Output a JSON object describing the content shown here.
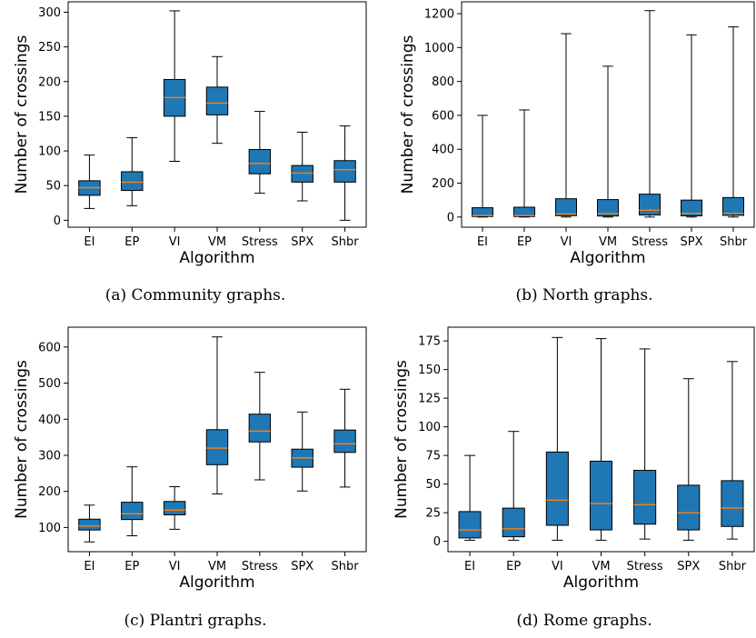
{
  "colors": {
    "box_fill": "#1f77b4",
    "median": "#ff7f0e",
    "line": "#000000"
  },
  "chart_data": [
    {
      "type": "box",
      "caption": "(a) Community graphs.",
      "xlabel": "Algorithm",
      "ylabel": "Number of crossings",
      "categories": [
        "EI",
        "EP",
        "VI",
        "VM",
        "Stress",
        "SPX",
        "Shbr"
      ],
      "ylim": [
        -10,
        315
      ],
      "yticks": [
        0,
        50,
        100,
        150,
        200,
        250,
        300
      ],
      "boxes": [
        {
          "min": 17,
          "q1": 36,
          "median": 47,
          "q3": 57,
          "max": 94
        },
        {
          "min": 21,
          "q1": 43,
          "median": 55,
          "q3": 70,
          "max": 119
        },
        {
          "min": 85,
          "q1": 150,
          "median": 177,
          "q3": 203,
          "max": 302
        },
        {
          "min": 111,
          "q1": 152,
          "median": 169,
          "q3": 192,
          "max": 236
        },
        {
          "min": 39,
          "q1": 67,
          "median": 82,
          "q3": 102,
          "max": 157
        },
        {
          "min": 28,
          "q1": 55,
          "median": 68,
          "q3": 79,
          "max": 127
        },
        {
          "min": 0,
          "q1": 55,
          "median": 73,
          "q3": 86,
          "max": 136
        }
      ]
    },
    {
      "type": "box",
      "caption": "(b) North graphs.",
      "xlabel": "Algorithm",
      "ylabel": "Number of crossings",
      "categories": [
        "EI",
        "EP",
        "VI",
        "VM",
        "Stress",
        "SPX",
        "Shbr"
      ],
      "ylim": [
        -60,
        1270
      ],
      "yticks": [
        0,
        200,
        400,
        600,
        800,
        1000,
        1200
      ],
      "boxes": [
        {
          "min": 0,
          "q1": 3,
          "median": 8,
          "q3": 55,
          "max": 600
        },
        {
          "min": 0,
          "q1": 3,
          "median": 8,
          "q3": 58,
          "max": 632
        },
        {
          "min": 0,
          "q1": 8,
          "median": 18,
          "q3": 108,
          "max": 1082
        },
        {
          "min": 0,
          "q1": 6,
          "median": 20,
          "q3": 103,
          "max": 890
        },
        {
          "min": 0,
          "q1": 12,
          "median": 40,
          "q3": 135,
          "max": 1218
        },
        {
          "min": 0,
          "q1": 7,
          "median": 22,
          "q3": 100,
          "max": 1075
        },
        {
          "min": 0,
          "q1": 10,
          "median": 22,
          "q3": 115,
          "max": 1122
        }
      ]
    },
    {
      "type": "box",
      "caption": "(c) Plantri graphs.",
      "xlabel": "Algorithm",
      "ylabel": "Number of crossings",
      "categories": [
        "EI",
        "EP",
        "VI",
        "VM",
        "Stress",
        "SPX",
        "Shbr"
      ],
      "ylim": [
        33,
        655
      ],
      "yticks": [
        100,
        200,
        300,
        400,
        500,
        600
      ],
      "boxes": [
        {
          "min": 60,
          "q1": 93,
          "median": 104,
          "q3": 123,
          "max": 162
        },
        {
          "min": 77,
          "q1": 122,
          "median": 138,
          "q3": 170,
          "max": 268
        },
        {
          "min": 95,
          "q1": 135,
          "median": 148,
          "q3": 172,
          "max": 213
        },
        {
          "min": 193,
          "q1": 274,
          "median": 320,
          "q3": 371,
          "max": 628
        },
        {
          "min": 232,
          "q1": 337,
          "median": 367,
          "q3": 414,
          "max": 530
        },
        {
          "min": 201,
          "q1": 267,
          "median": 293,
          "q3": 317,
          "max": 420
        },
        {
          "min": 212,
          "q1": 308,
          "median": 332,
          "q3": 370,
          "max": 483
        }
      ]
    },
    {
      "type": "box",
      "caption": "(d) Rome graphs.",
      "xlabel": "Algorithm",
      "ylabel": "Number of crossings",
      "categories": [
        "EI",
        "EP",
        "VI",
        "VM",
        "Stress",
        "SPX",
        "Shbr"
      ],
      "ylim": [
        -9,
        187
      ],
      "yticks": [
        0,
        25,
        50,
        75,
        100,
        125,
        150,
        175
      ],
      "boxes": [
        {
          "min": 1,
          "q1": 3,
          "median": 10,
          "q3": 26,
          "max": 75
        },
        {
          "min": 1,
          "q1": 4,
          "median": 11,
          "q3": 29,
          "max": 96
        },
        {
          "min": 1,
          "q1": 14,
          "median": 36,
          "q3": 78,
          "max": 178
        },
        {
          "min": 1,
          "q1": 10,
          "median": 33,
          "q3": 70,
          "max": 177
        },
        {
          "min": 2,
          "q1": 15,
          "median": 32,
          "q3": 62,
          "max": 168
        },
        {
          "min": 1,
          "q1": 10,
          "median": 25,
          "q3": 49,
          "max": 142
        },
        {
          "min": 2,
          "q1": 13,
          "median": 29,
          "q3": 53,
          "max": 157
        }
      ]
    }
  ]
}
